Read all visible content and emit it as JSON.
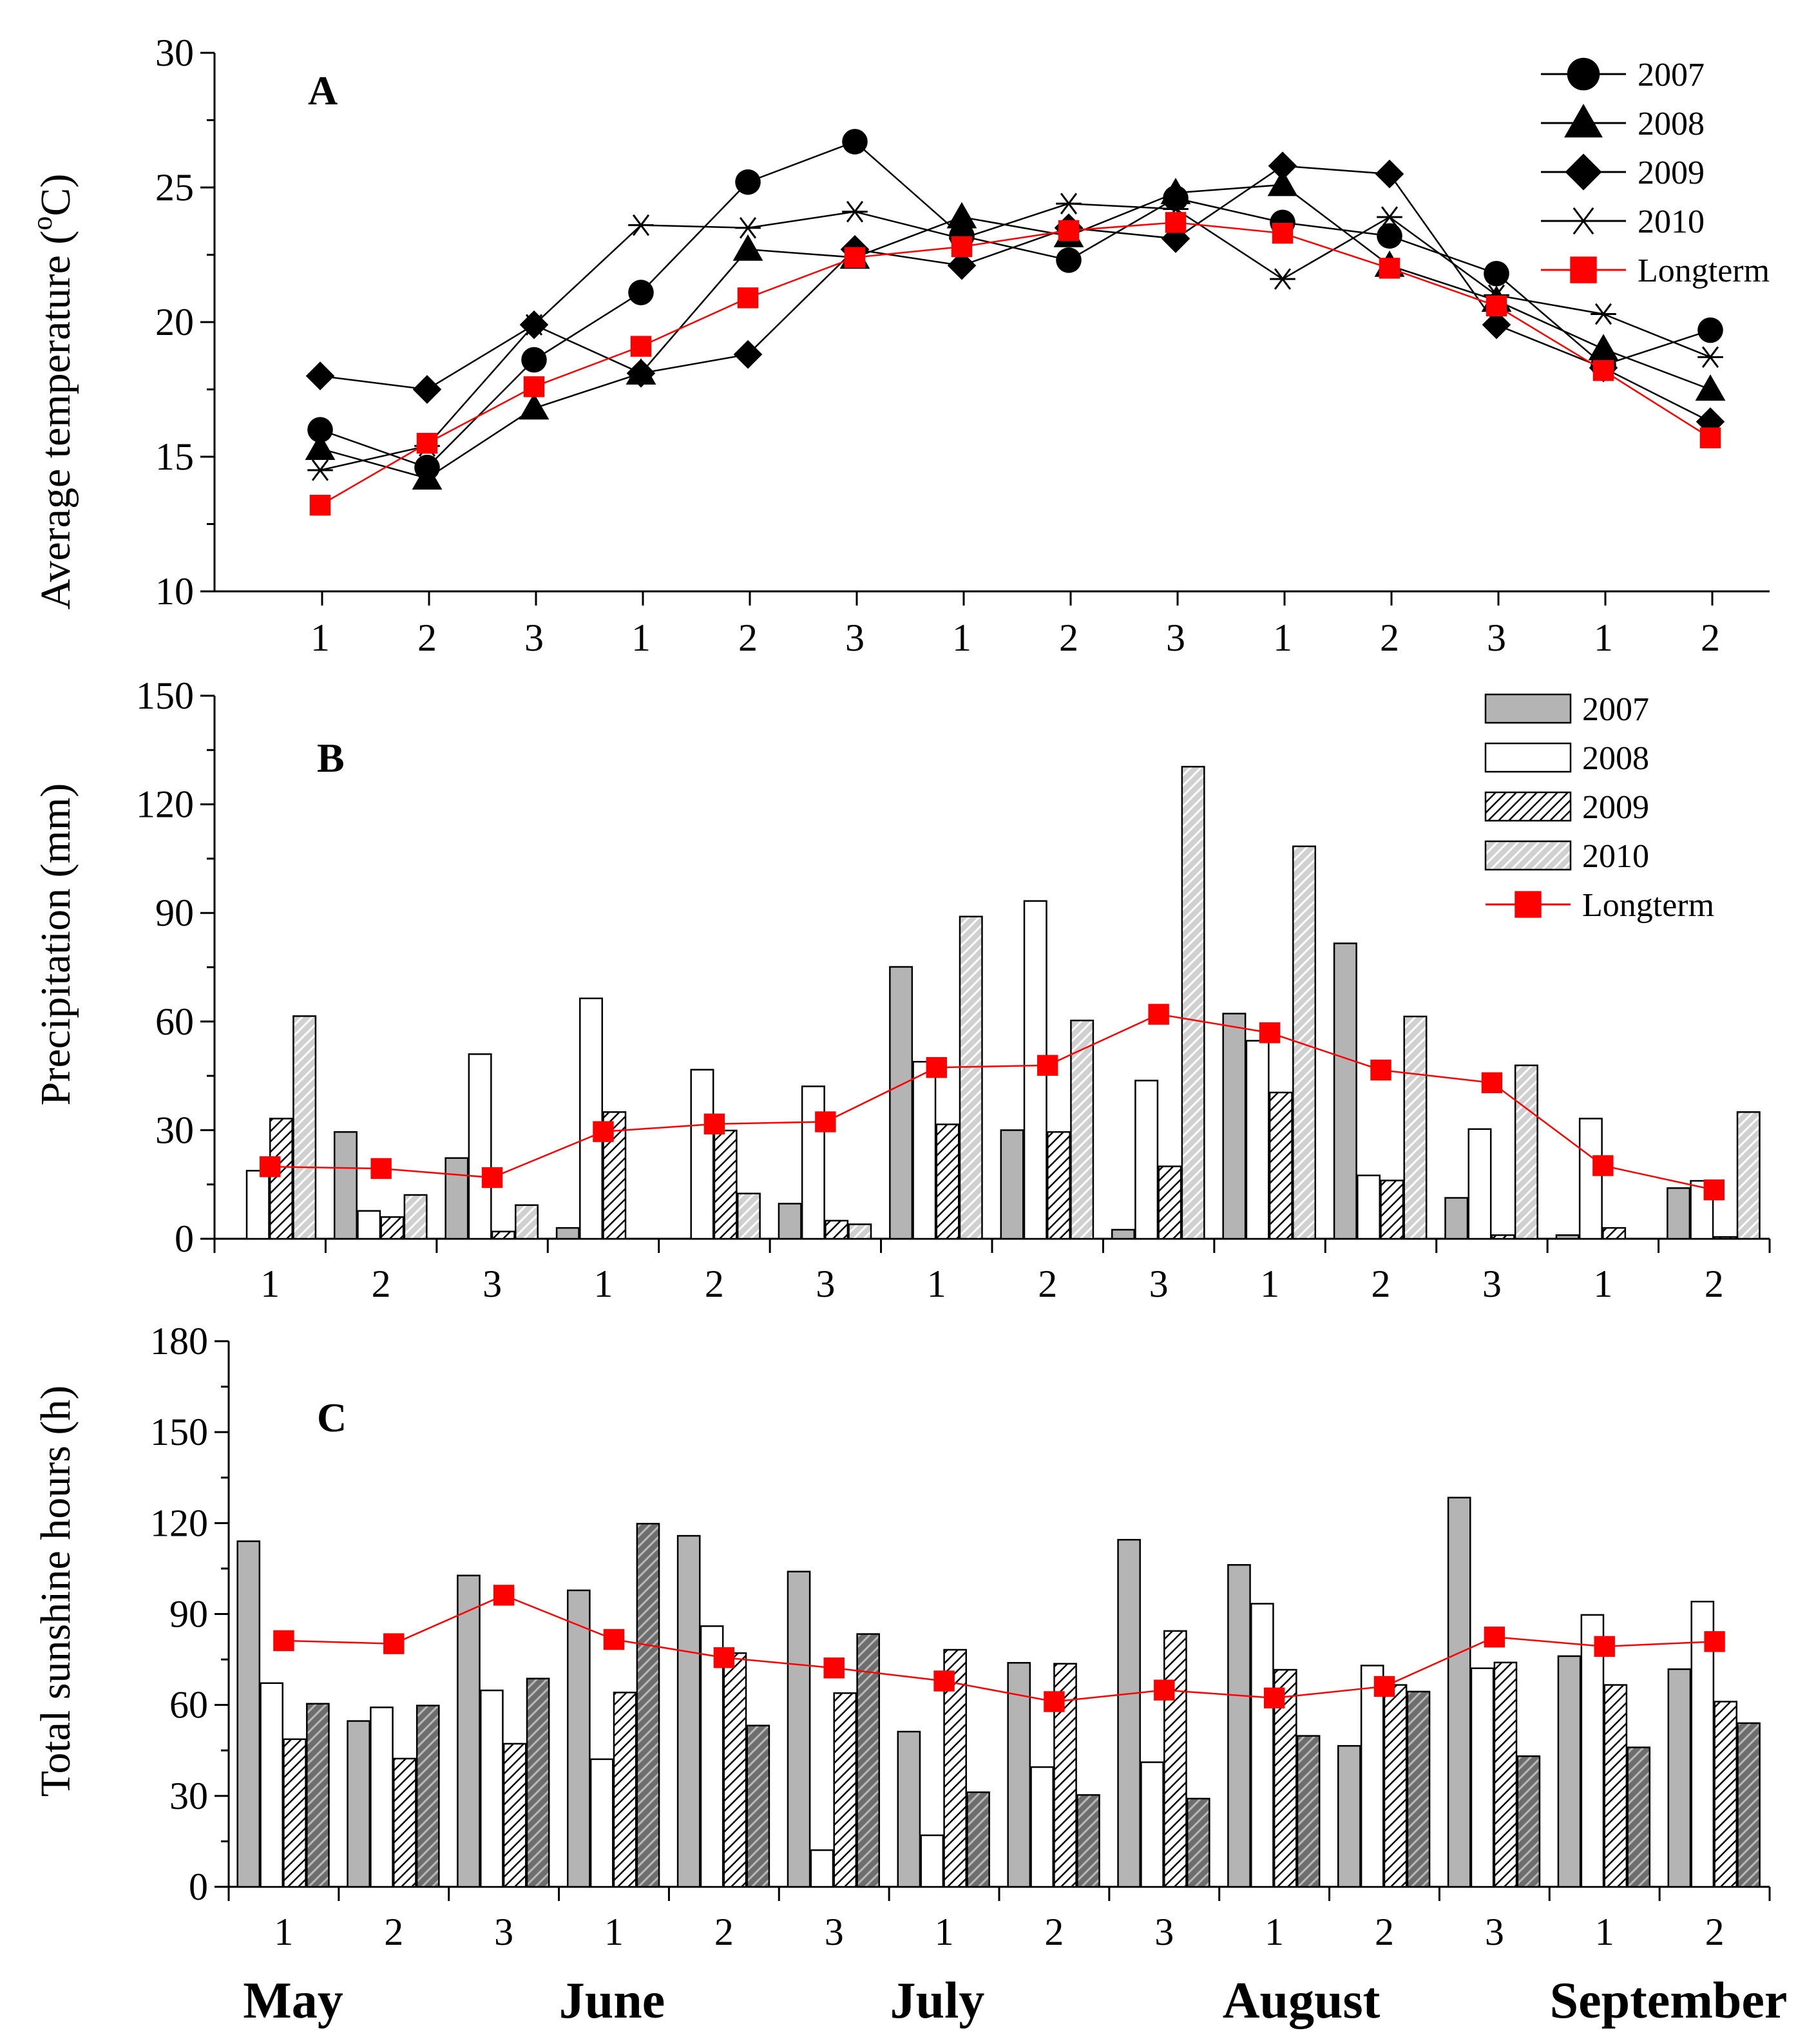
{
  "chart_data": [
    {
      "type": "line",
      "panel": "A",
      "title": "",
      "xlabel": "",
      "ylabel": "Average temperature (°C)",
      "ylabel_parts": [
        "Average temperature (",
        "o",
        "C)"
      ],
      "ylim": [
        10,
        30
      ],
      "yticks": [
        "10",
        "15",
        "20",
        "25",
        "30"
      ],
      "categories": [
        "1",
        "2",
        "3",
        "1",
        "2",
        "3",
        "1",
        "2",
        "3",
        "1",
        "2",
        "3",
        "1",
        "2"
      ],
      "legend_position": "top-right",
      "series": [
        {
          "name": "2007",
          "marker": "circle",
          "color": "#000000",
          "values": [
            16.0,
            14.6,
            18.6,
            21.1,
            25.2,
            26.7,
            23.2,
            22.3,
            24.6,
            23.7,
            23.2,
            21.8,
            18.4,
            19.7
          ]
        },
        {
          "name": "2008",
          "marker": "triangle",
          "color": "#000000",
          "values": [
            15.3,
            14.2,
            16.8,
            18.1,
            22.7,
            22.4,
            23.9,
            23.2,
            24.8,
            25.1,
            22.1,
            20.8,
            19.0,
            17.5
          ]
        },
        {
          "name": "2009",
          "marker": "diamond",
          "color": "#000000",
          "values": [
            18.0,
            17.5,
            19.9,
            18.1,
            18.8,
            22.7,
            22.1,
            23.5,
            23.1,
            25.8,
            25.5,
            19.9,
            18.3,
            16.3
          ]
        },
        {
          "name": "2010",
          "marker": "star",
          "color": "#000000",
          "values": [
            14.5,
            15.4,
            19.9,
            23.6,
            23.5,
            24.1,
            23.1,
            24.4,
            24.2,
            21.6,
            23.9,
            21.0,
            20.3,
            18.7
          ]
        },
        {
          "name": "Longterm",
          "marker": "square",
          "color": "#ff0000",
          "values": [
            13.2,
            15.5,
            17.6,
            19.1,
            20.9,
            22.4,
            22.8,
            23.4,
            23.7,
            23.3,
            22.0,
            20.6,
            18.2,
            15.7
          ]
        }
      ]
    },
    {
      "type": "bar",
      "panel": "B",
      "title": "",
      "xlabel": "",
      "ylabel": "Precipitation (mm)",
      "ylim": [
        0,
        150
      ],
      "yticks": [
        "0",
        "30",
        "60",
        "90",
        "120",
        "150"
      ],
      "categories": [
        "1",
        "2",
        "3",
        "1",
        "2",
        "3",
        "1",
        "2",
        "3",
        "1",
        "2",
        "3",
        "1",
        "2"
      ],
      "legend_position": "top-right",
      "series": [
        {
          "name": "2007",
          "fill": "gray",
          "values": [
            0,
            29.5,
            22.3,
            3.0,
            0,
            9.7,
            75.1,
            30.0,
            2.5,
            62.2,
            81.6,
            11.3,
            1.0,
            14.0
          ]
        },
        {
          "name": "2008",
          "fill": "white",
          "values": [
            18.8,
            7.7,
            51.0,
            66.4,
            46.7,
            42.1,
            48.9,
            93.3,
            43.7,
            54.7,
            17.5,
            30.3,
            33.2,
            16.0
          ]
        },
        {
          "name": "2009",
          "fill": "hatch-light",
          "values": [
            33.2,
            6.0,
            2.0,
            35.0,
            29.9,
            5.0,
            31.6,
            29.5,
            20.0,
            40.4,
            16.1,
            1.0,
            3.0,
            0.5
          ]
        },
        {
          "name": "2010",
          "fill": "hatch-gray",
          "values": [
            61.5,
            12.1,
            9.3,
            0,
            12.5,
            4.0,
            89.0,
            60.3,
            130.4,
            108.4,
            61.4,
            47.9,
            0,
            35.0
          ]
        },
        {
          "name": "Longterm",
          "type": "line",
          "color": "#ff0000",
          "values": [
            19.9,
            19.4,
            16.9,
            29.6,
            31.7,
            32.3,
            47.3,
            47.9,
            62.0,
            56.9,
            46.6,
            43.1,
            20.2,
            13.5
          ]
        }
      ]
    },
    {
      "type": "bar",
      "panel": "C",
      "title": "",
      "xlabel": "",
      "ylabel": "Total sunshine hours (h)",
      "ylim": [
        0,
        180
      ],
      "yticks": [
        "0",
        "30",
        "60",
        "90",
        "120",
        "150",
        "180"
      ],
      "categories": [
        "1",
        "2",
        "3",
        "1",
        "2",
        "3",
        "1",
        "2",
        "3",
        "1",
        "2",
        "3",
        "1",
        "2"
      ],
      "months": [
        "May",
        "June",
        "July",
        "August",
        "September"
      ],
      "series": [
        {
          "name": "2007",
          "fill": "gray",
          "values": [
            114,
            54.7,
            102.7,
            97.8,
            115.8,
            104.0,
            51.2,
            73.9,
            114.5,
            106.2,
            46.5,
            128.4,
            76.1,
            71.8
          ]
        },
        {
          "name": "2008",
          "fill": "white",
          "values": [
            67.2,
            59.2,
            64.8,
            42.1,
            86.0,
            12.1,
            17.0,
            39.5,
            41.1,
            93.4,
            73.0,
            72.1,
            89.7,
            94.1
          ]
        },
        {
          "name": "2009",
          "fill": "hatch-light",
          "values": [
            48.7,
            42.3,
            47.2,
            64.1,
            77.1,
            63.9,
            78.2,
            73.6,
            84.4,
            71.6,
            66.6,
            74.0,
            66.6,
            61.1
          ]
        },
        {
          "name": "2010",
          "fill": "hatch-dark",
          "values": [
            60.4,
            59.8,
            68.7,
            119.8,
            53.2,
            83.4,
            31.2,
            30.3,
            29.1,
            49.8,
            64.4,
            43.1,
            46.0,
            54.0
          ]
        },
        {
          "name": "Longterm",
          "type": "line",
          "color": "#ff0000",
          "values": [
            81.2,
            80.2,
            96.2,
            81.6,
            75.6,
            72.2,
            67.9,
            61.1,
            64.9,
            62.3,
            66.1,
            82.4,
            79.3,
            80.9
          ]
        }
      ]
    }
  ]
}
